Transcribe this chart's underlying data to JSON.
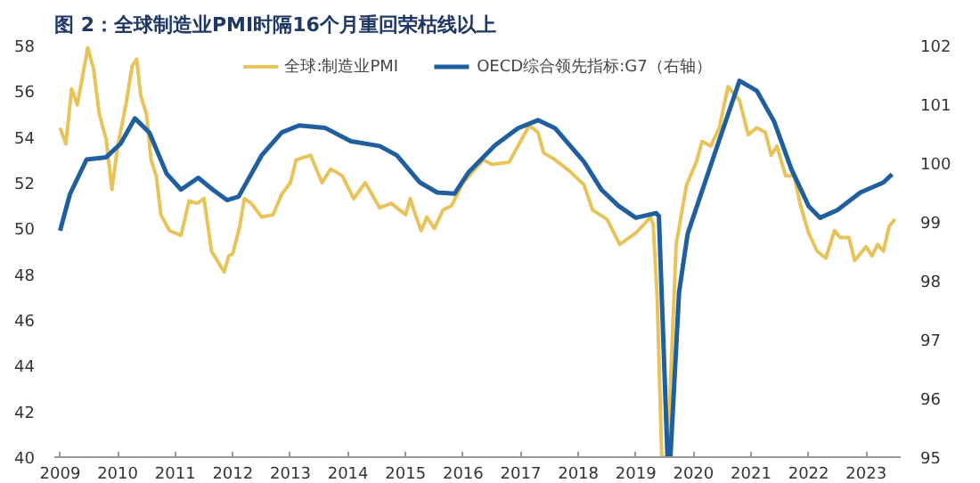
{
  "chart_data": {
    "type": "line",
    "title": "图 2：全球制造业PMI时隔16个月重回荣枯线以上",
    "legend": "top",
    "grid": false,
    "marker": "none",
    "line_style": "solid",
    "xlim": [
      2008.9,
      2023.6
    ],
    "xticks": [
      2009,
      2010,
      2011,
      2012,
      2013,
      2014,
      2015,
      2016,
      2017,
      2018,
      2019,
      2020,
      2021,
      2022,
      2023
    ],
    "ylim": [
      40,
      58
    ],
    "yticks": [
      40,
      42,
      44,
      46,
      48,
      50,
      52,
      54,
      56,
      58
    ],
    "y2lim": [
      95,
      102
    ],
    "y2ticks": [
      95,
      96,
      97,
      98,
      99,
      100,
      101,
      102
    ],
    "series": [
      {
        "name": "全球:制造业PMI",
        "color": "#e8c35a",
        "x": [
          2009.0,
          2009.1,
          2009.2,
          2009.3,
          2009.48,
          2009.58,
          2009.68,
          2009.8,
          2009.9,
          2010.0,
          2010.15,
          2010.25,
          2010.33,
          2010.4,
          2010.5,
          2010.58,
          2010.67,
          2010.75,
          2010.9,
          2011.1,
          2011.24,
          2011.38,
          2011.5,
          2011.63,
          2011.85,
          2011.93,
          2012.0,
          2012.12,
          2012.2,
          2012.32,
          2012.5,
          2012.7,
          2012.85,
          2013.0,
          2013.1,
          2013.35,
          2013.55,
          2013.7,
          2013.9,
          2014.1,
          2014.3,
          2014.55,
          2014.75,
          2015.0,
          2015.08,
          2015.17,
          2015.27,
          2015.37,
          2015.5,
          2015.65,
          2015.8,
          2016.0,
          2016.35,
          2016.5,
          2016.8,
          2016.95,
          2017.15,
          2017.3,
          2017.4,
          2017.6,
          2017.85,
          2018.1,
          2018.25,
          2018.5,
          2018.72,
          2019.0,
          2019.15,
          2019.25,
          2019.3,
          2019.37,
          2019.45,
          2019.55,
          2019.7,
          2019.88,
          2020.05,
          2020.15,
          2020.3,
          2020.45,
          2020.6,
          2020.7,
          2020.8,
          2020.95,
          2021.1,
          2021.25,
          2021.35,
          2021.45,
          2021.6,
          2021.75,
          2021.85,
          2022.0,
          2022.15,
          2022.3,
          2022.45,
          2022.55,
          2022.7,
          2022.8,
          2023.0,
          2023.1,
          2023.2,
          2023.3,
          2023.4,
          2023.5
        ],
        "values": [
          54.4,
          53.7,
          56.1,
          55.4,
          57.9,
          57.0,
          55.0,
          53.9,
          51.7,
          53.6,
          55.5,
          57.1,
          57.4,
          55.8,
          55.0,
          53.0,
          52.3,
          50.6,
          49.9,
          49.7,
          51.2,
          51.1,
          51.3,
          49.0,
          48.1,
          48.8,
          48.9,
          50.1,
          51.3,
          51.1,
          50.5,
          50.6,
          51.5,
          52.0,
          53.0,
          53.2,
          52.0,
          52.6,
          52.3,
          51.3,
          52.0,
          50.9,
          51.1,
          50.6,
          51.3,
          50.6,
          49.9,
          50.5,
          50.0,
          50.8,
          51.0,
          52.0,
          53.0,
          52.8,
          52.9,
          53.6,
          54.5,
          54.2,
          53.3,
          53.0,
          52.5,
          51.9,
          50.8,
          50.4,
          49.3,
          49.8,
          50.2,
          50.5,
          50.2,
          47.0,
          40,
          40,
          49.3,
          51.9,
          52.9,
          53.8,
          53.6,
          54.4,
          56.2,
          55.9,
          55.6,
          54.1,
          54.4,
          54.2,
          53.2,
          53.6,
          52.3,
          52.3,
          51.1,
          49.8,
          49.0,
          48.7,
          49.9,
          49.6,
          49.6,
          48.6,
          49.2,
          48.8,
          49.3,
          49.0,
          50.1,
          50.4
        ]
      },
      {
        "name": "OECD综合领先指标:G7（右轴）",
        "color": "#1f5fa0",
        "axis": "y2",
        "x": [
          2009.0,
          2009.17,
          2009.46,
          2009.8,
          2010.05,
          2010.3,
          2010.55,
          2010.85,
          2011.1,
          2011.4,
          2011.65,
          2011.9,
          2012.1,
          2012.5,
          2012.85,
          2013.15,
          2013.6,
          2014.05,
          2014.55,
          2014.85,
          2015.25,
          2015.55,
          2015.85,
          2016.1,
          2016.55,
          2016.95,
          2017.3,
          2017.6,
          2018.1,
          2018.4,
          2018.7,
          2019.0,
          2019.35,
          2019.4,
          2019.55,
          2019.6,
          2019.75,
          2019.9,
          2020.1,
          2020.4,
          2020.8,
          2021.1,
          2021.4,
          2021.7,
          2022.0,
          2022.2,
          2022.5,
          2022.9,
          2023.3,
          2023.45
        ],
        "values": [
          98.85,
          99.47,
          100.06,
          100.1,
          100.33,
          100.76,
          100.52,
          99.82,
          99.55,
          99.75,
          99.55,
          99.37,
          99.43,
          100.13,
          100.52,
          100.64,
          100.6,
          100.37,
          100.29,
          100.13,
          99.67,
          99.5,
          99.48,
          99.85,
          100.3,
          100.59,
          100.73,
          100.59,
          100.02,
          99.55,
          99.27,
          99.07,
          99.15,
          99.1,
          95,
          95,
          97.8,
          98.8,
          99.38,
          100.25,
          101.4,
          101.23,
          100.71,
          99.9,
          99.27,
          99.07,
          99.2,
          99.5,
          99.67,
          99.81
        ]
      }
    ]
  }
}
